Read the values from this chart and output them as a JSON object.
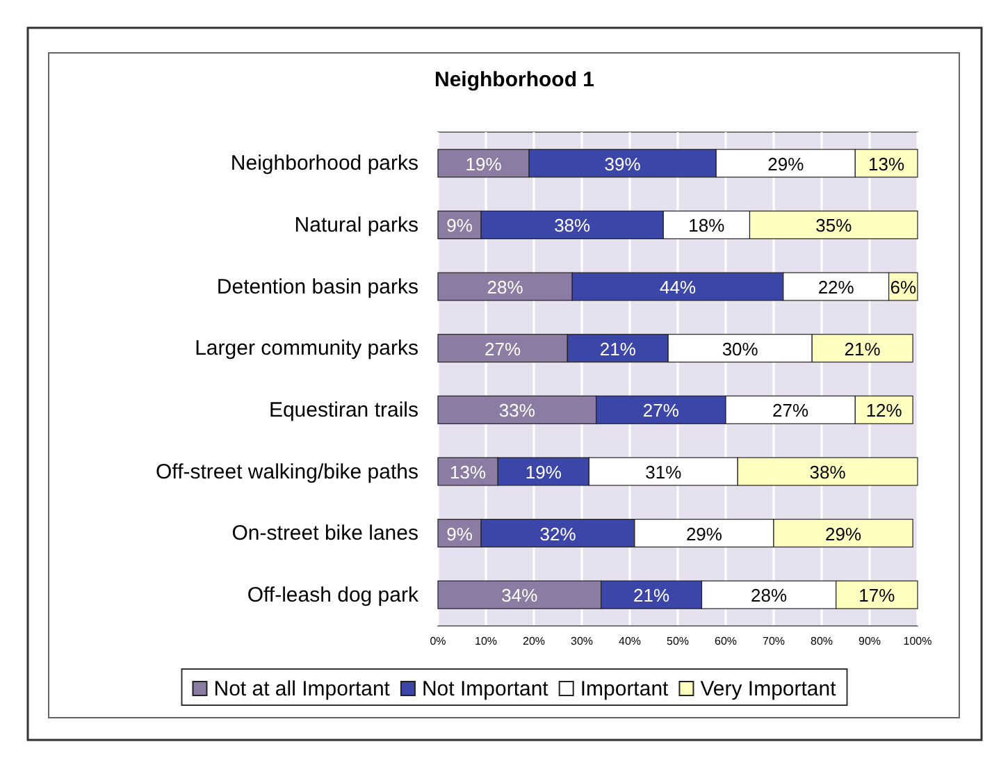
{
  "chart_data": {
    "type": "bar",
    "orientation": "horizontal",
    "stacked": true,
    "title": "Neighborhood 1",
    "categories": [
      "Neighborhood parks",
      "Natural parks",
      "Detention basin parks",
      "Larger community parks",
      "Equestiran trails",
      "Off-street walking/bike paths",
      "On-street bike lanes",
      "Off-leash dog park"
    ],
    "series": [
      {
        "name": "Not at all Important",
        "color": "#8c7ba3",
        "values": [
          19,
          9,
          28,
          27,
          33,
          12.5,
          9,
          34
        ],
        "value_labels": [
          "19%",
          "9%",
          "28%",
          "27%",
          "33%",
          "13%",
          "9%",
          "34%"
        ]
      },
      {
        "name": "Not Important",
        "color": "#3c46a8",
        "values": [
          39,
          38,
          44,
          21,
          27,
          19,
          32,
          21
        ],
        "value_labels": [
          "39%",
          "38%",
          "44%",
          "21%",
          "27%",
          "19%",
          "32%",
          "21%"
        ]
      },
      {
        "name": "Important",
        "color": "#ffffff",
        "values": [
          29,
          18,
          22,
          30,
          27,
          31,
          29,
          28
        ],
        "value_labels": [
          "29%",
          "18%",
          "22%",
          "30%",
          "27%",
          "31%",
          "29%",
          "28%"
        ]
      },
      {
        "name": "Very Important",
        "color": "#ffffc0",
        "values": [
          13,
          35,
          6,
          21,
          12,
          37.5,
          29,
          17
        ],
        "value_labels": [
          "13%",
          "35%",
          "6%",
          "21%",
          "12%",
          "38%",
          "29%",
          "17%"
        ]
      }
    ],
    "xlim": [
      0,
      100
    ],
    "xticks": [
      {
        "value": 0,
        "label": "0%"
      },
      {
        "value": 10,
        "label": "10%"
      },
      {
        "value": 20,
        "label": "20%"
      },
      {
        "value": 30,
        "label": "30%"
      },
      {
        "value": 40,
        "label": "40%"
      },
      {
        "value": 50,
        "label": "50%"
      },
      {
        "value": 60,
        "label": "60%"
      },
      {
        "value": 70,
        "label": "70%"
      },
      {
        "value": 80,
        "label": "80%"
      },
      {
        "value": 90,
        "label": "90%"
      },
      {
        "value": 100,
        "label": "100%"
      }
    ],
    "grid": "x",
    "legend": "bottom"
  }
}
